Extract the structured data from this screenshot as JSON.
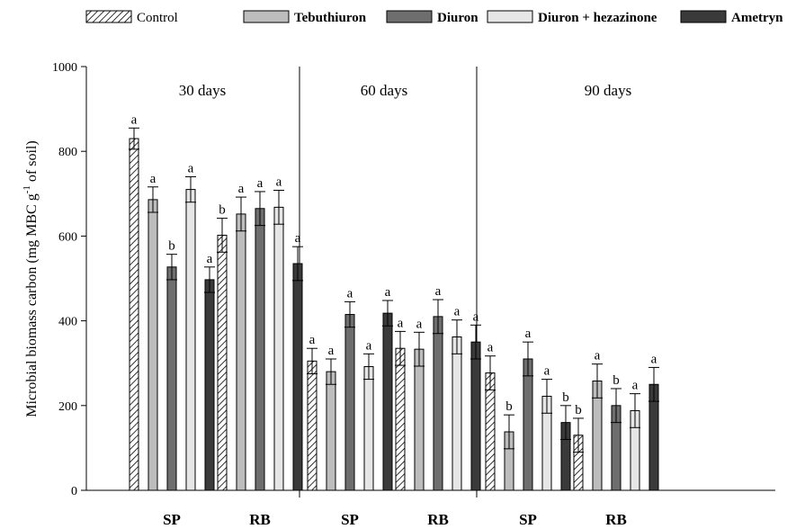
{
  "chart_data": {
    "type": "bar",
    "ylabel": "Microbial biomass carbon (mg MBC g-1 of soil)",
    "ylabel_parts": {
      "main": "Microbial biomass carbon (mg MBC g",
      "superscript": "-1",
      "tail": " of soil)"
    },
    "ylim": [
      0,
      1000
    ],
    "yticks": [
      0,
      200,
      400,
      600,
      800,
      1000
    ],
    "legend_position": "top",
    "periods": [
      "30 days",
      "60 days",
      "90 days"
    ],
    "sites": [
      "SP",
      "RB"
    ],
    "series": [
      {
        "name": "Control",
        "pattern": "hatched",
        "fill": "#ffffff"
      },
      {
        "name": "Tebuthiuron",
        "pattern": "solid",
        "fill": "#bdbdbd"
      },
      {
        "name": "Diuron",
        "pattern": "solid",
        "fill": "#6e6e6e"
      },
      {
        "name": "Diuron + hezazinone",
        "pattern": "solid",
        "fill": "#e6e6e6"
      },
      {
        "name": "Ametryn",
        "pattern": "solid",
        "fill": "#3a3a3a"
      }
    ],
    "groups": [
      {
        "period": "30 days",
        "site": "SP",
        "values": [
          830,
          686,
          527,
          710,
          497
        ],
        "errors": [
          25,
          30,
          30,
          30,
          30
        ],
        "letters": [
          "a",
          "a",
          "b",
          "a",
          "a"
        ]
      },
      {
        "period": "30 days",
        "site": "RB",
        "values": [
          602,
          652,
          665,
          668,
          535
        ],
        "errors": [
          40,
          40,
          40,
          40,
          40
        ],
        "letters": [
          "b",
          "a",
          "a",
          "a",
          "a"
        ]
      },
      {
        "period": "60 days",
        "site": "SP",
        "values": [
          305,
          280,
          415,
          292,
          418
        ],
        "errors": [
          30,
          30,
          30,
          30,
          30
        ],
        "letters": [
          "a",
          "a",
          "a",
          "a",
          "a"
        ]
      },
      {
        "period": "60 days",
        "site": "RB",
        "values": [
          335,
          333,
          410,
          362,
          350
        ],
        "errors": [
          40,
          40,
          40,
          40,
          40
        ],
        "letters": [
          "a",
          "a",
          "a",
          "a",
          "a"
        ]
      },
      {
        "period": "90 days",
        "site": "SP",
        "values": [
          277,
          138,
          310,
          222,
          160
        ],
        "errors": [
          40,
          40,
          40,
          40,
          40
        ],
        "letters": [
          "a",
          "b",
          "a",
          "a",
          "b"
        ]
      },
      {
        "period": "90 days",
        "site": "RB",
        "values": [
          130,
          258,
          200,
          188,
          250
        ],
        "errors": [
          40,
          40,
          40,
          40,
          40
        ],
        "letters": [
          "b",
          "a",
          "b",
          "a",
          "a"
        ]
      }
    ]
  }
}
